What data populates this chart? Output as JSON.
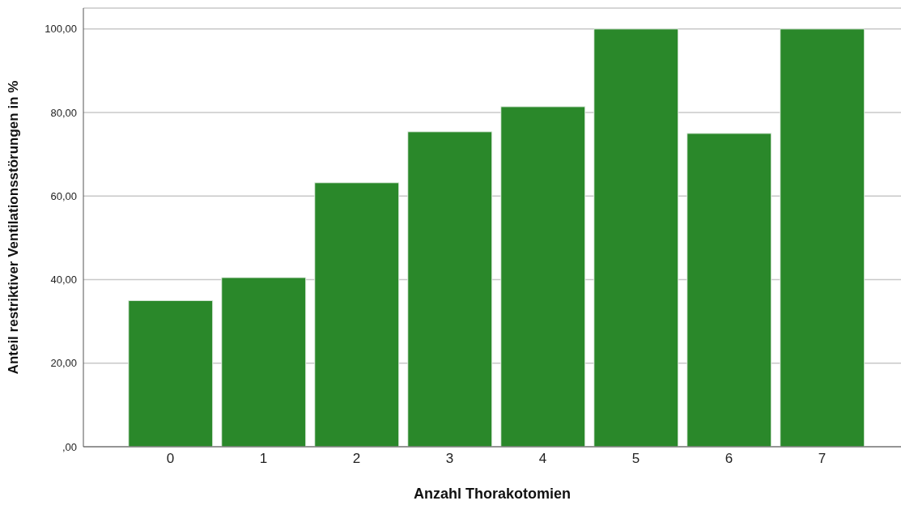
{
  "chart_data": {
    "type": "bar",
    "xlabel": "Anzahl Thorakotomien",
    "ylabel": "Anteil restriktiver Ventilationsstörungen in %",
    "categories": [
      "0",
      "1",
      "2",
      "3",
      "4",
      "5",
      "6",
      "7"
    ],
    "values": [
      35,
      40.5,
      63.2,
      75.4,
      81.4,
      100,
      75,
      100
    ],
    "color": "#2a882a",
    "ylim": [
      0,
      105
    ],
    "yticks": [
      {
        "value": 0,
        "label": ",00"
      },
      {
        "value": 20,
        "label": "20,00"
      },
      {
        "value": 40,
        "label": "40,00"
      },
      {
        "value": 60,
        "label": "60,00"
      },
      {
        "value": 80,
        "label": "80,00"
      },
      {
        "value": 100,
        "label": "100,00"
      }
    ],
    "grid": "y",
    "legend": false
  }
}
